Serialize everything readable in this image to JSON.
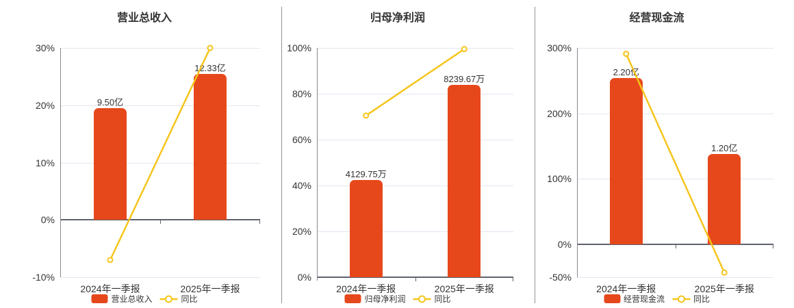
{
  "colors": {
    "background": "#FFFFFF",
    "bar": "#E7481B",
    "line": "#F5C51B",
    "grid": "#E4E4F0",
    "axis_dark": "#5E626E",
    "axis_light": "#87878F",
    "divider": "#90909A",
    "text": "#333333"
  },
  "chart_data": [
    {
      "type": "bar",
      "title": "营业总收入",
      "categories": [
        "2024年一季报",
        "2025年一季报"
      ],
      "bar_series_name": "营业总收入",
      "bar_value_labels": [
        "9.50亿",
        "12.33亿"
      ],
      "bar_values": [
        9.5,
        12.33
      ],
      "bar_unit": "亿",
      "bar_axis_pct": [
        19.5,
        25.5
      ],
      "line_series_name": "同比",
      "line_values_pct": [
        -7,
        30
      ],
      "ylim": [
        -10,
        30
      ],
      "yticks": [
        {
          "value": 30,
          "label": "30%"
        },
        {
          "value": 20,
          "label": "20%"
        },
        {
          "value": 10,
          "label": "10%"
        },
        {
          "value": 0,
          "label": "0%"
        },
        {
          "value": -10,
          "label": "-10%"
        }
      ],
      "legend_position": "bottom",
      "grid": true
    },
    {
      "type": "bar",
      "title": "归母净利润",
      "categories": [
        "2024年一季报",
        "2025年一季报"
      ],
      "bar_series_name": "归母净利润",
      "bar_value_labels": [
        "4129.75万",
        "8239.67万"
      ],
      "bar_values": [
        4129.75,
        8239.67
      ],
      "bar_unit": "万",
      "bar_axis_pct": [
        42.5,
        84
      ],
      "line_series_name": "同比",
      "line_values_pct": [
        70.5,
        99.5
      ],
      "ylim": [
        0,
        100
      ],
      "yticks": [
        {
          "value": 100,
          "label": "100%"
        },
        {
          "value": 80,
          "label": "80%"
        },
        {
          "value": 60,
          "label": "60%"
        },
        {
          "value": 40,
          "label": "40%"
        },
        {
          "value": 20,
          "label": "20%"
        },
        {
          "value": 0,
          "label": "0%"
        }
      ],
      "legend_position": "bottom",
      "grid": true
    },
    {
      "type": "bar",
      "title": "经营现金流",
      "categories": [
        "2024年一季报",
        "2025年一季报"
      ],
      "bar_series_name": "经营现金流",
      "bar_value_labels": [
        "2.20亿",
        "1.20亿"
      ],
      "bar_values": [
        2.2,
        1.2
      ],
      "bar_unit": "亿",
      "bar_axis_pct": [
        254.5,
        138
      ],
      "line_series_name": "同比",
      "line_values_pct": [
        291,
        -43
      ],
      "ylim": [
        -50,
        300
      ],
      "yticks": [
        {
          "value": 300,
          "label": "300%"
        },
        {
          "value": 200,
          "label": "200%"
        },
        {
          "value": 100,
          "label": "100%"
        },
        {
          "value": 0,
          "label": "0%"
        },
        {
          "value": -50,
          "label": "-50%"
        }
      ],
      "legend_position": "bottom",
      "grid": true
    }
  ]
}
